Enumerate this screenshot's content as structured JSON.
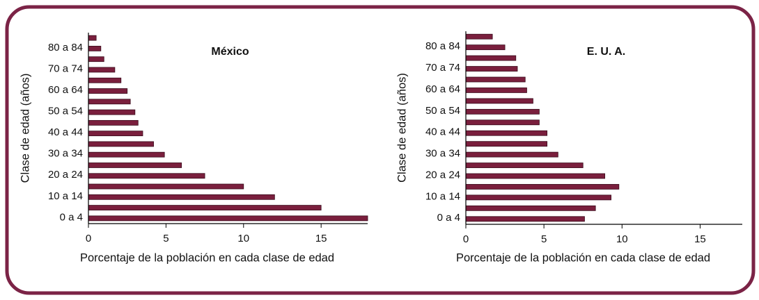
{
  "chart_data": [
    {
      "type": "bar",
      "orientation": "horizontal",
      "title": "México",
      "y_label": "Clase de edad (años)",
      "x_label": "Porcentaje de la población en cada clase de edad",
      "categories": [
        "0 a 4",
        null,
        "10 a 14",
        null,
        "20 a 24",
        null,
        "30 a 34",
        null,
        "40 a 44",
        null,
        "50 a 54",
        null,
        "60 a 64",
        null,
        "70 a 74",
        null,
        "80 a 84",
        null
      ],
      "values": [
        18,
        15,
        12,
        10,
        7.5,
        6,
        4.9,
        4.2,
        3.5,
        3.2,
        3.0,
        2.7,
        2.5,
        2.1,
        1.7,
        1.0,
        0.8,
        0.5
      ],
      "color": "#7a1f3d",
      "xlim": [
        0,
        18
      ],
      "xticks": [
        0,
        5,
        10,
        15
      ]
    },
    {
      "type": "bar",
      "orientation": "horizontal",
      "title": "E. U. A.",
      "y_label": "Clase de edad (años)",
      "x_label": "Porcentaje de la población en cada clase de edad",
      "categories": [
        "0 a 4",
        null,
        "10 a 14",
        null,
        "20 a 24",
        null,
        "30 a 34",
        null,
        "40 a 44",
        null,
        "50 a 54",
        null,
        "60 a 64",
        null,
        "70 a 74",
        null,
        "80 a 84",
        null
      ],
      "values": [
        7.6,
        8.3,
        9.3,
        9.8,
        8.9,
        7.5,
        5.9,
        5.2,
        5.2,
        4.7,
        4.7,
        4.3,
        3.9,
        3.8,
        3.3,
        3.2,
        2.5,
        1.7
      ],
      "color": "#7a1f3d",
      "xlim": [
        0,
        17.7
      ],
      "xticks": [
        0,
        5,
        10,
        15
      ]
    }
  ]
}
